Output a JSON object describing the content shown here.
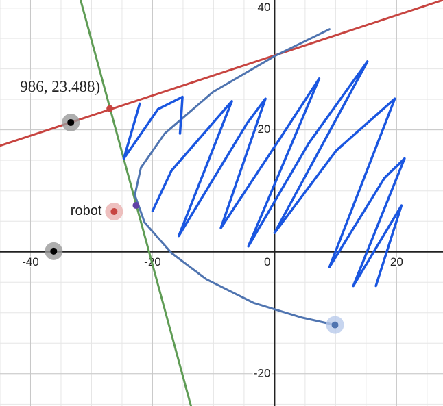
{
  "chart_data": {
    "type": "line",
    "xlim": [
      -45,
      27.6
    ],
    "ylim": [
      -25.3,
      41.3
    ],
    "xticks": [
      -40,
      -20,
      0,
      20
    ],
    "yticks": [
      -20,
      20,
      40
    ],
    "grid": true,
    "minor_grid": 5,
    "series": [
      {
        "color": "#c74440",
        "x": [
          -45,
          27.6
        ],
        "y": [
          17.4,
          41.3
        ]
      },
      {
        "color": "#5f9c55",
        "x": [
          -31.8,
          -13.7
        ],
        "y": [
          41.3,
          -25.3
        ]
      },
      {
        "color": "#4f74b0",
        "x": [
          9.0,
          0,
          -10.1,
          -18.0,
          -21.9,
          -22.9,
          -21.3,
          -16.9,
          -11.2,
          -3.4,
          4.5,
          9.9
        ],
        "y": [
          36.5,
          32.1,
          26.2,
          19.4,
          13.8,
          9.3,
          4.8,
          -0.2,
          -4.5,
          -8.4,
          -10.8,
          -12.0
        ]
      },
      {
        "color": "#1a56e0",
        "x": [
          -22.1,
          -24.7,
          -19.1,
          -15.1,
          -15.5,
          null,
          -20.0,
          -16.9,
          -7.0,
          -15.7,
          -4.5,
          -1.5,
          -8.8,
          1.1,
          7.3,
          -4.3,
          5.6,
          15.2,
          0,
          10.1,
          19.7,
          9.0,
          18.0,
          21.3,
          12.9,
          20.8,
          16.6
        ],
        "y": [
          24.3,
          15.3,
          23.4,
          25.4,
          19.4,
          null,
          6.7,
          13.3,
          24.7,
          2.6,
          21.1,
          25.1,
          3.9,
          18.9,
          28.4,
          0.9,
          17.8,
          31.2,
          3.1,
          16.6,
          25.1,
          -2.5,
          12.1,
          15.3,
          -5.6,
          7.6,
          -5.6
        ]
      }
    ],
    "points": [
      {
        "x": -33.4,
        "y": 21.2,
        "color": "#000000",
        "halo": "#9a9a9a"
      },
      {
        "x": -36.2,
        "y": 0.1,
        "color": "#000000",
        "halo": "#9a9a9a"
      },
      {
        "x": -26.3,
        "y": 6.6,
        "color": "#c74440",
        "halo": "#eab0af",
        "label": "robot"
      },
      {
        "x": -27.0,
        "y": 23.5,
        "color": "#c74440",
        "label": "986, 23.488)"
      },
      {
        "x": -22.7,
        "y": 7.6,
        "color": "#6042a6"
      },
      {
        "x": 9.9,
        "y": -12.0,
        "color": "#4f74b0",
        "halo": "#b9cbeb"
      }
    ]
  }
}
